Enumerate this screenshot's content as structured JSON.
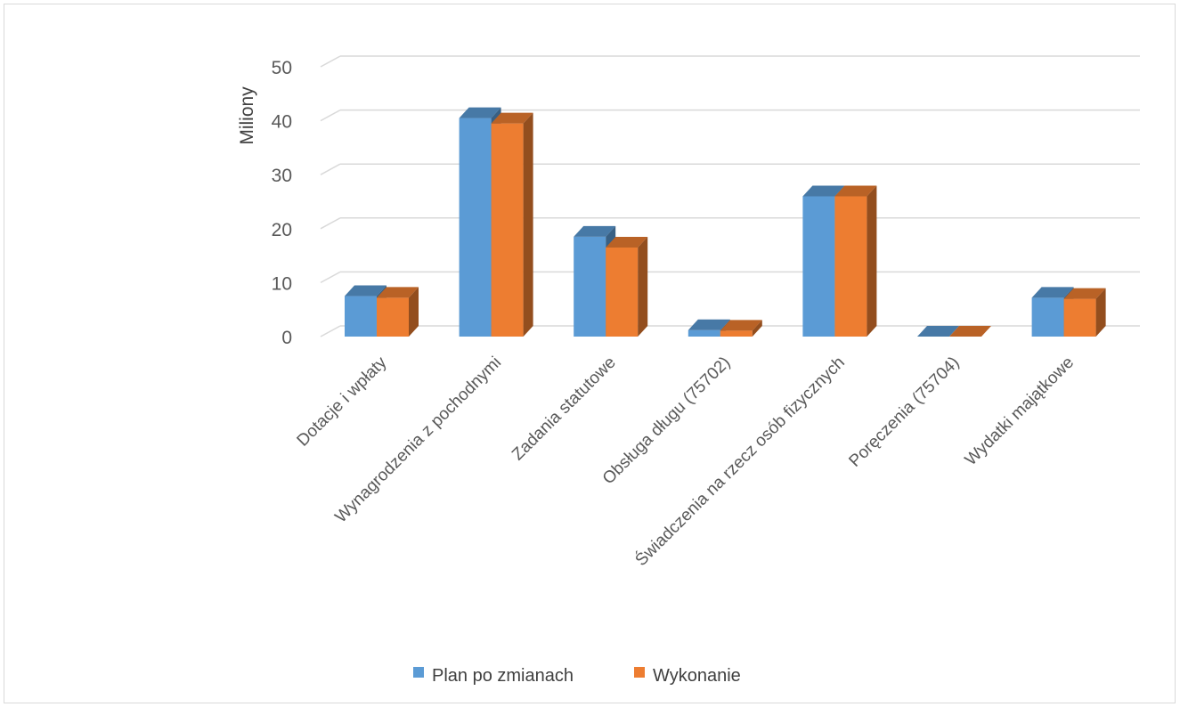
{
  "chart_data": {
    "type": "bar",
    "title": "",
    "xlabel": "",
    "ylabel": "Miliony",
    "ylim": [
      0,
      50
    ],
    "yticks": [
      "0",
      "10",
      "20",
      "30",
      "40",
      "50"
    ],
    "grid": true,
    "legend_position": "bottom",
    "categories": [
      "Dotacje i wpłaty",
      "Wynagrodzenia z pochodnymi",
      "Zadania statutowe",
      "Obsługa długu (75702)",
      "Świadczenia na rzecz osób fizycznych",
      "Poręczenia (75704)",
      "Wydatki majątkowe"
    ],
    "series": [
      {
        "name": "Plan po zmianach",
        "color": "#5B9BD5",
        "values": [
          7.5,
          40.5,
          18.5,
          1.2,
          26.0,
          0.0,
          7.2
        ]
      },
      {
        "name": "Wykonanie",
        "color": "#ED7D31",
        "values": [
          7.2,
          39.5,
          16.5,
          1.1,
          26.0,
          0.0,
          7.0
        ]
      }
    ]
  }
}
